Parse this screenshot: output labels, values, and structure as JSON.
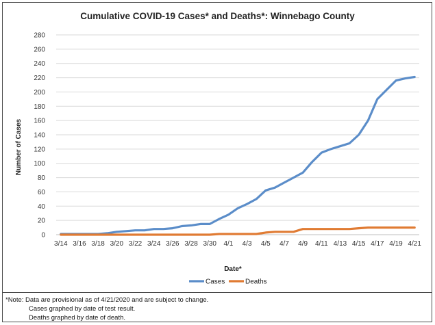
{
  "chart_data": {
    "type": "line",
    "title": "Cumulative COVID-19 Cases* and Deaths*: Winnebago County",
    "xlabel": "Date*",
    "ylabel": "Number of Cases",
    "ylim": [
      0,
      280
    ],
    "yticks": [
      0,
      20,
      40,
      60,
      80,
      100,
      120,
      140,
      160,
      180,
      200,
      220,
      240,
      260,
      280
    ],
    "grid": true,
    "legend_position": "bottom",
    "x": [
      "3/14",
      "3/15",
      "3/16",
      "3/17",
      "3/18",
      "3/19",
      "3/20",
      "3/21",
      "3/22",
      "3/23",
      "3/24",
      "3/25",
      "3/26",
      "3/27",
      "3/28",
      "3/29",
      "3/30",
      "3/31",
      "4/1",
      "4/2",
      "4/3",
      "4/4",
      "4/5",
      "4/6",
      "4/7",
      "4/8",
      "4/9",
      "4/10",
      "4/11",
      "4/12",
      "4/13",
      "4/14",
      "4/15",
      "4/16",
      "4/17",
      "4/18",
      "4/19",
      "4/20",
      "4/21"
    ],
    "x_tick_labels": [
      "3/14",
      "3/16",
      "3/18",
      "3/20",
      "3/22",
      "3/24",
      "3/26",
      "3/28",
      "3/30",
      "4/1",
      "4/3",
      "4/5",
      "4/7",
      "4/9",
      "4/11",
      "4/13",
      "4/15",
      "4/17",
      "4/19",
      "4/21"
    ],
    "series": [
      {
        "name": "Cases",
        "color": "#5B8DC9",
        "values": [
          1,
          1,
          1,
          1,
          1,
          2,
          4,
          5,
          6,
          6,
          8,
          8,
          9,
          12,
          13,
          15,
          15,
          22,
          28,
          37,
          43,
          50,
          62,
          66,
          73,
          80,
          87,
          102,
          115,
          120,
          124,
          128,
          140,
          160,
          190,
          203,
          216,
          219,
          221
        ]
      },
      {
        "name": "Deaths",
        "color": "#E07B33",
        "values": [
          0,
          0,
          0,
          0,
          0,
          0,
          0,
          0,
          0,
          0,
          0,
          0,
          0,
          0,
          0,
          0,
          0,
          1,
          1,
          1,
          1,
          1,
          3,
          4,
          4,
          4,
          8,
          8,
          8,
          8,
          8,
          8,
          9,
          10,
          10,
          10,
          10,
          10,
          10
        ]
      }
    ]
  },
  "notes": {
    "line1": "*Note: Data are provisional as of 4/21/2020 and are subject to change.",
    "line2": "Cases graphed by date of test result.",
    "line3": "Deaths graphed by date of death."
  }
}
